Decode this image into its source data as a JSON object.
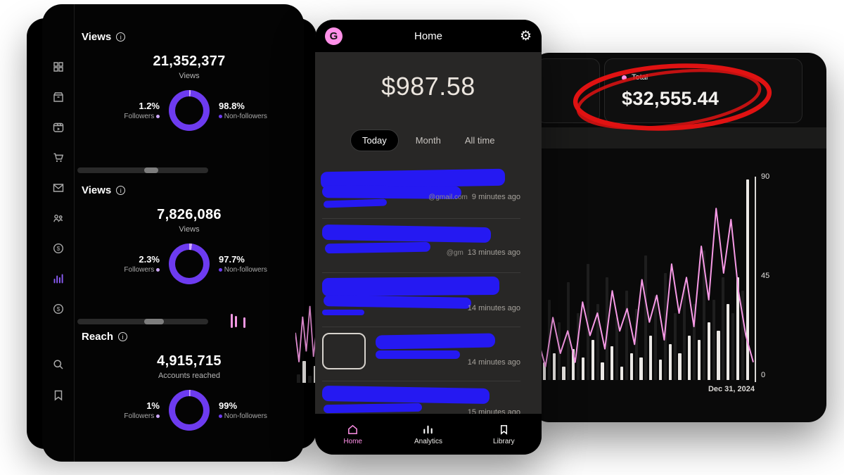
{
  "insights": {
    "sidebar_icons": [
      "grid-icon",
      "orders-icon",
      "reels-icon",
      "cart-icon",
      "messages-icon",
      "collab-icon",
      "monetization-icon",
      "insights-icon",
      "payouts-icon",
      "search-icon",
      "saved-icon"
    ],
    "sections": [
      {
        "title": "Views",
        "value": "21,352,377",
        "caption": "Views",
        "followers_pct": "1.2%",
        "followers_label": "Followers",
        "followers_value": 1.2,
        "nonfollowers_pct": "98.8%",
        "nonfollowers_label": "Non-followers"
      },
      {
        "title": "Views",
        "value": "7,826,086",
        "caption": "Views",
        "followers_pct": "2.3%",
        "followers_label": "Followers",
        "followers_value": 2.3,
        "nonfollowers_pct": "97.7%",
        "nonfollowers_label": "Non-followers"
      },
      {
        "title": "Reach",
        "value": "4,915,715",
        "caption": "Accounts reached",
        "followers_pct": "1%",
        "followers_label": "Followers",
        "followers_value": 1,
        "nonfollowers_pct": "99%",
        "nonfollowers_label": "Non-followers"
      }
    ],
    "colors": {
      "donut_main": "#6d3bf0",
      "donut_slice": "#cfa9ff"
    }
  },
  "phone": {
    "logo": "G",
    "title": "Home",
    "balance": "$987.58",
    "tabs": [
      {
        "label": "Today",
        "active": true
      },
      {
        "label": "Month",
        "active": false
      },
      {
        "label": "All time",
        "active": false
      }
    ],
    "transactions": [
      {
        "fragment": "@gmail.com",
        "time": "9 minutes ago"
      },
      {
        "fragment": "@gm",
        "time": "13 minutes ago"
      },
      {
        "fragment": "",
        "time": "14 minutes ago"
      },
      {
        "fragment": "",
        "time": "14 minutes ago"
      },
      {
        "fragment": "",
        "time": "15 minutes ago"
      }
    ],
    "nav": [
      {
        "label": "Home"
      },
      {
        "label": "Analytics"
      },
      {
        "label": "Library"
      }
    ],
    "accent": "#ff90e8"
  },
  "earnings": {
    "legend": "Total",
    "total": "$32,555.44",
    "date_label": "Dec 31, 2024",
    "chart_data": {
      "type": "bar+line",
      "ylim": [
        0,
        90
      ],
      "yticks": [
        0,
        45,
        90
      ],
      "x_end_label": "Dec 31, 2024",
      "series": [
        {
          "name": "dark-bars",
          "color": "#1e1e1e",
          "values": [
            30,
            36,
            26,
            44,
            30,
            52,
            34,
            46,
            28,
            40,
            32,
            56,
            38,
            48,
            30,
            42,
            34,
            58,
            36,
            46,
            30,
            40
          ]
        },
        {
          "name": "light-bars",
          "color": "#ece9e6",
          "values": [
            8,
            12,
            6,
            14,
            10,
            18,
            8,
            15,
            6,
            12,
            10,
            20,
            9,
            16,
            12,
            20,
            18,
            26,
            22,
            34,
            46,
            90
          ]
        },
        {
          "name": "pink-line",
          "color": "#f79ae6",
          "values": [
            18,
            6,
            28,
            12,
            22,
            8,
            35,
            20,
            30,
            14,
            40,
            22,
            32,
            16,
            45,
            26,
            38,
            18,
            52,
            30,
            46,
            24,
            60,
            36,
            77,
            48,
            72,
            40,
            20,
            8
          ]
        }
      ]
    },
    "peek": {
      "line": [
        28,
        6,
        40,
        14,
        48,
        10,
        34,
        4
      ],
      "bars": [
        10,
        26,
        8,
        20
      ]
    }
  }
}
